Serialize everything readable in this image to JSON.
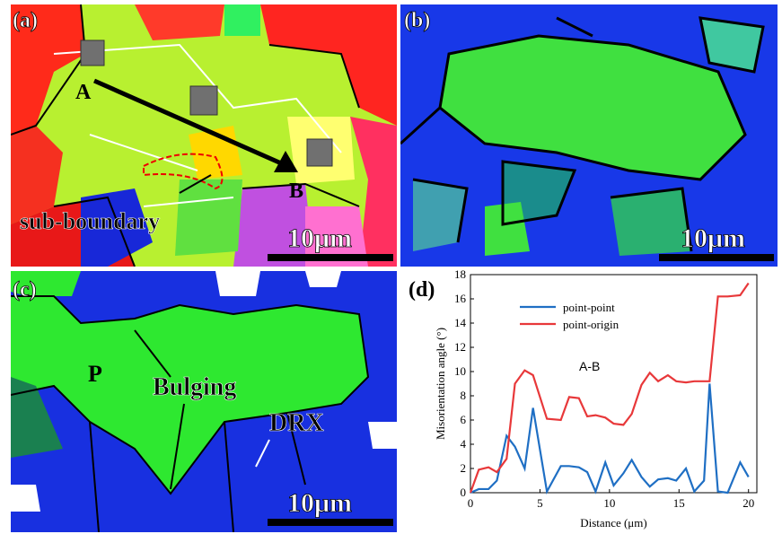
{
  "panel_a": {
    "label": "(a)",
    "point_a": "A",
    "point_b": "B",
    "annotation": "sub-boundary",
    "scale_bar": "10μm"
  },
  "panel_b": {
    "label": "(b)",
    "scale_bar": "10μm"
  },
  "panel_c": {
    "label": "(c)",
    "grain": "P",
    "annotation_bulging": "Bulging",
    "annotation_drx": "DRX",
    "scale_bar": "10μm"
  },
  "chart_data": {
    "type": "line",
    "panel_label": "(d)",
    "annotation": "A-B",
    "x_label": "Distance (μm)",
    "y_label": "Misorientation angle (°)",
    "x": [
      0,
      0.6,
      1.3,
      1.9,
      2.6,
      3.2,
      3.9,
      4.5,
      5.5,
      6.5,
      7.1,
      7.8,
      8.4,
      9.0,
      9.7,
      10.3,
      11.0,
      11.6,
      12.3,
      12.9,
      13.5,
      14.2,
      14.8,
      15.5,
      16.1,
      16.8,
      17.2,
      17.8,
      18.5,
      19.4,
      20.0
    ],
    "series": [
      {
        "name": "point-point",
        "color": "#1f6fc4",
        "values": [
          0,
          0.3,
          0.3,
          1.0,
          4.7,
          3.8,
          2.0,
          7.0,
          0.1,
          2.2,
          2.2,
          2.1,
          1.7,
          0.1,
          2.5,
          0.6,
          1.6,
          2.7,
          1.3,
          0.5,
          1.1,
          1.2,
          1.0,
          2.0,
          0.1,
          1.0,
          9.0,
          0.1,
          0.0,
          2.5,
          1.3
        ]
      },
      {
        "name": "point-origin",
        "color": "#e8383a",
        "values": [
          0,
          1.9,
          2.1,
          1.7,
          2.8,
          9.0,
          10.1,
          9.7,
          6.1,
          6.0,
          7.9,
          7.8,
          6.3,
          6.4,
          6.2,
          5.7,
          5.6,
          6.5,
          8.9,
          9.9,
          9.2,
          9.7,
          9.2,
          9.1,
          9.2,
          9.2,
          9.2,
          16.2,
          16.2,
          16.3,
          17.3
        ]
      }
    ],
    "xlim": [
      0,
      20.6
    ],
    "xticks": [
      0,
      5,
      10,
      15,
      20
    ],
    "ylim": [
      0,
      18
    ],
    "yticks": [
      0,
      2,
      4,
      6,
      8,
      10,
      12,
      14,
      16,
      18
    ],
    "grid": false,
    "legend": "upper left"
  }
}
